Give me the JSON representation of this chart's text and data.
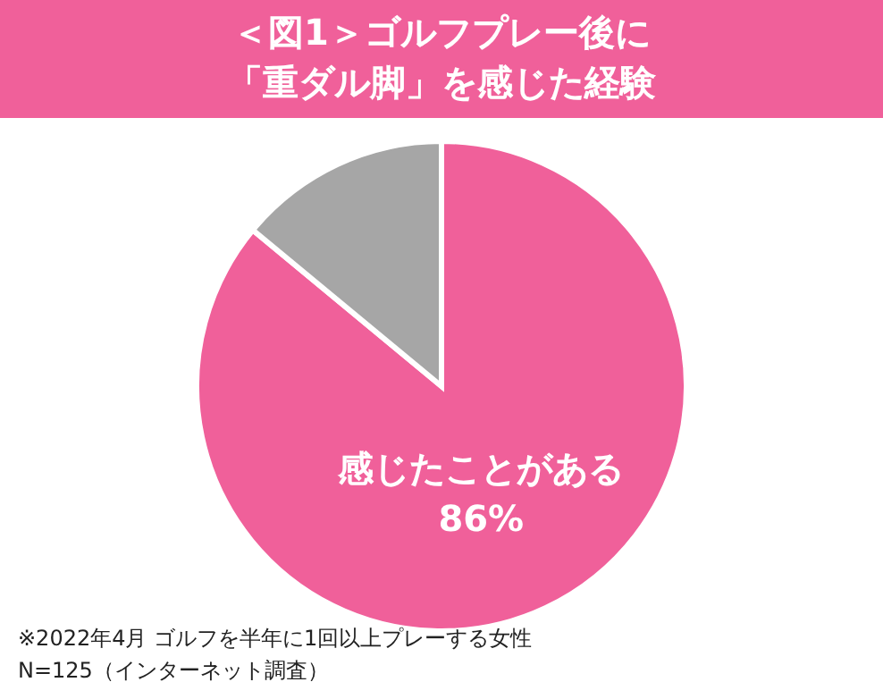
{
  "chart_data": {
    "type": "pie",
    "title": "＜図1＞ゴルフプレー後に",
    "subtitle": "「重ダル脚」を感じた経験",
    "categories": [
      "感じたことがある",
      null
    ],
    "values": [
      86,
      14
    ],
    "colors": [
      "#f0609a",
      "#a6a6a6"
    ],
    "value_labels": [
      "86%",
      null
    ],
    "annotations": [
      "※2022年4月 ゴルフを半年に1回以上プレーする女性",
      "　N=125（インターネット調査）"
    ]
  }
}
